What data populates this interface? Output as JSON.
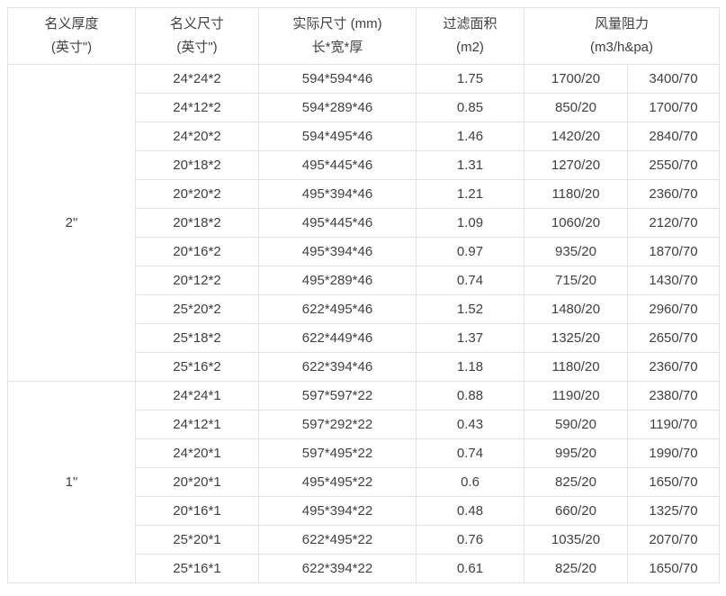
{
  "colors": {
    "text": "#404040",
    "grid_line": "#e2e2e2",
    "outer_border": "#c6c6c6",
    "background": "#ffffff"
  },
  "table": {
    "headers": {
      "thickness": {
        "line1": "名义厚度",
        "line2": "(英寸\")"
      },
      "nominal_size": {
        "line1": "名义尺寸",
        "line2": "(英寸\")"
      },
      "actual_size": {
        "line1": "实际尺寸 (mm)",
        "line2": "长*宽*厚"
      },
      "filter_area": {
        "line1": "过滤面积",
        "line2": "(m2)"
      },
      "airflow_resistance": {
        "line1": "风量阻力",
        "line2": "(m3/h&pa)"
      }
    },
    "sections": [
      {
        "thickness": "2\"",
        "rows": [
          [
            "24*24*2",
            "594*594*46",
            "1.75",
            "1700/20",
            "3400/70"
          ],
          [
            "24*12*2",
            "594*289*46",
            "0.85",
            "850/20",
            "1700/70"
          ],
          [
            "24*20*2",
            "594*495*46",
            "1.46",
            "1420/20",
            "2840/70"
          ],
          [
            "20*18*2",
            "495*445*46",
            "1.31",
            "1270/20",
            "2550/70"
          ],
          [
            "20*20*2",
            "495*394*46",
            "1.21",
            "1180/20",
            "2360/70"
          ],
          [
            "20*18*2",
            "495*445*46",
            "1.09",
            "1060/20",
            "2120/70"
          ],
          [
            "20*16*2",
            "495*394*46",
            "0.97",
            "935/20",
            "1870/70"
          ],
          [
            "20*12*2",
            "495*289*46",
            "0.74",
            "715/20",
            "1430/70"
          ],
          [
            "25*20*2",
            "622*495*46",
            "1.52",
            "1480/20",
            "2960/70"
          ],
          [
            "25*18*2",
            "622*449*46",
            "1.37",
            "1325/20",
            "2650/70"
          ],
          [
            "25*16*2",
            "622*394*46",
            "1.18",
            "1180/20",
            "2360/70"
          ]
        ]
      },
      {
        "thickness": "1\"",
        "rows": [
          [
            "24*24*1",
            "597*597*22",
            "0.88",
            "1190/20",
            "2380/70"
          ],
          [
            "24*12*1",
            "597*292*22",
            "0.43",
            "590/20",
            "1190/70"
          ],
          [
            "24*20*1",
            "597*495*22",
            "0.74",
            "995/20",
            "1990/70"
          ],
          [
            "20*20*1",
            "495*495*22",
            "0.6",
            "825/20",
            "1650/70"
          ],
          [
            "20*16*1",
            "495*394*22",
            "0.48",
            "660/20",
            "1325/70"
          ],
          [
            "25*20*1",
            "622*495*22",
            "0.76",
            "1035/20",
            "2070/70"
          ],
          [
            "25*16*1",
            "622*394*22",
            "0.61",
            "825/20",
            "1650/70"
          ]
        ]
      }
    ]
  }
}
